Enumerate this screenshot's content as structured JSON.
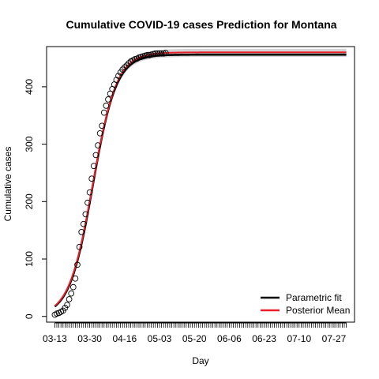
{
  "chart_data": {
    "type": "line",
    "title": "Cumulative COVID-19 cases Prediction for Montana",
    "xlabel": "Day",
    "ylabel": "Cumulative cases",
    "x_start_date": "03-13",
    "x_end_index": 142,
    "x_tick_labels": [
      "03-13",
      "03-30",
      "04-16",
      "05-03",
      "05-20",
      "06-06",
      "06-23",
      "07-10",
      "07-27"
    ],
    "x_tick_index_step": 17,
    "ylim": [
      -10,
      470
    ],
    "y_ticks": [
      0,
      100,
      200,
      300,
      400
    ],
    "grid": false,
    "legend_position": "bottom-right",
    "legend": [
      {
        "label": "Parametric fit",
        "color": "#000000"
      },
      {
        "label": "Posterior Mean",
        "color": "#e8202a"
      }
    ],
    "observed_points": {
      "x": [
        0,
        1,
        2,
        3,
        4,
        5,
        6,
        7,
        8,
        9,
        10,
        11,
        12,
        13,
        14,
        15,
        16,
        17,
        18,
        19,
        20,
        21,
        22,
        23,
        24,
        25,
        26,
        27,
        28,
        29,
        30,
        31,
        32,
        33,
        34,
        35,
        36,
        37,
        38,
        39,
        40,
        41,
        42,
        43,
        44,
        45,
        46,
        47,
        48,
        49,
        50,
        51,
        52,
        53,
        54
      ],
      "values": [
        3,
        5,
        6,
        8,
        10,
        15,
        20,
        30,
        40,
        51,
        66,
        90,
        121,
        147,
        161,
        178,
        198,
        216,
        240,
        262,
        281,
        298,
        319,
        332,
        355,
        367,
        378,
        388,
        396,
        404,
        412,
        419,
        425,
        430,
        434,
        437,
        441,
        444,
        446,
        448,
        449,
        451,
        452,
        453,
        454,
        455,
        455,
        456,
        457,
        458,
        458,
        458,
        458,
        458,
        459
      ]
    },
    "series": [
      {
        "name": "Parametric fit",
        "color": "#000000",
        "K": 456,
        "r": 0.175,
        "t0": 18.5
      },
      {
        "name": "Posterior Mean",
        "color": "#e8202a",
        "K": 460,
        "r": 0.172,
        "t0": 18.5
      }
    ],
    "band": {
      "color": "#c8c8cc",
      "upper_K": 466,
      "lower_K": 452
    }
  }
}
